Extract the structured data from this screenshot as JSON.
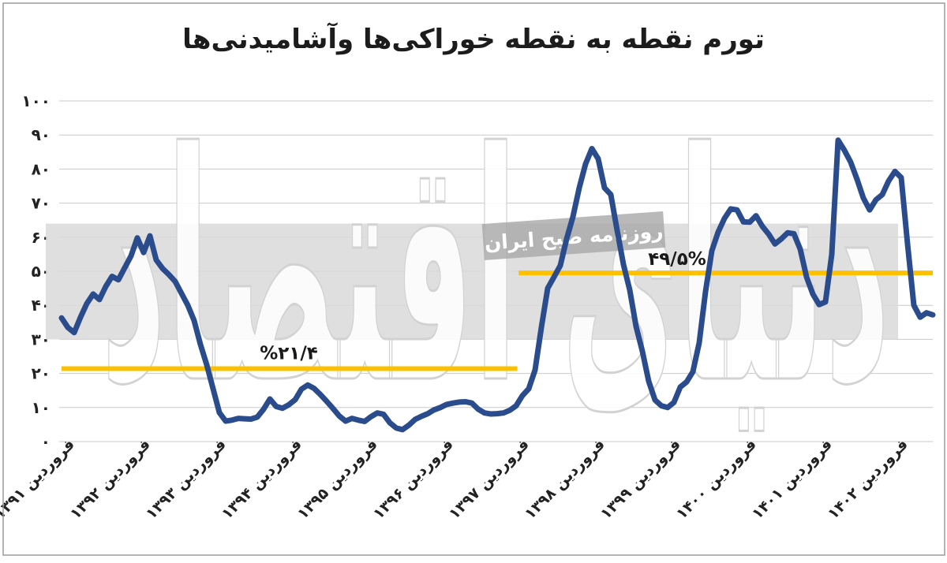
{
  "title": "تورم نقطه به نقطه خوراکی‌ها وآشامیدنی‌ها",
  "colors": {
    "line": "#2b4c8c",
    "annotation_line": "#ffc000",
    "grid": "#c9c9c9",
    "band": "#d9d9d9",
    "text": "#1c1c1c",
    "watermark_outline": "#d2d2d2",
    "watermark_box": "#a8a8a8"
  },
  "watermark": {
    "big_text": "دنیای اقتصاد",
    "box_text": "روزنامه صبح ایران"
  },
  "chart_data": {
    "type": "line",
    "title": "تورم نقطه به نقطه خوراکی‌ها وآشامیدنی‌ها",
    "unit": "درصد",
    "ylim": [
      0,
      100
    ],
    "y_tick_step": 10,
    "grid": "horizontal",
    "y_tick_labels": [
      "۰",
      "۱۰",
      "۲۰",
      "۳۰",
      "۴۰",
      "۵۰",
      "۶۰",
      "۷۰",
      "۸۰",
      "۹۰",
      "۱۰۰"
    ],
    "x_tick_labels": [
      "فروردین ۱۳۹۱",
      "فروردین ۱۳۹۲",
      "فروردین ۱۳۹۳",
      "فروردین ۱۳۹۴",
      "فروردین ۱۳۹۵",
      "فروردین ۱۳۹۶",
      "فروردین ۱۳۹۷",
      "فروردین ۱۳۹۸",
      "فروردین ۱۳۹۹",
      "فروردین ۱۴۰۰",
      "فروردین ۱۴۰۱",
      "فروردین ۱۴۰۲"
    ],
    "months_per_tick": 12,
    "series": [
      {
        "name": "تورم نقطه به نقطه خوراکی‌ها و آشامیدنی‌ها",
        "start": "فروردین ۱۳۹۱",
        "frequency": "monthly",
        "values": [
          36.3,
          33.5,
          32.0,
          36.5,
          40.5,
          43.3,
          41.7,
          45.5,
          48.5,
          47.5,
          51.0,
          54.5,
          59.8,
          55.5,
          60.4,
          53.3,
          50.8,
          49.0,
          47.0,
          43.5,
          40.0,
          35.5,
          28.5,
          22.5,
          15.5,
          8.5,
          6.0,
          6.3,
          6.8,
          6.7,
          6.6,
          7.2,
          9.5,
          12.5,
          10.3,
          9.8,
          10.8,
          12.3,
          15.4,
          16.6,
          15.6,
          13.8,
          11.8,
          9.7,
          7.5,
          6.0,
          6.8,
          6.3,
          5.9,
          7.3,
          8.4,
          8.0,
          5.5,
          4.0,
          3.5,
          4.8,
          6.5,
          7.4,
          8.2,
          9.3,
          10.0,
          10.9,
          11.3,
          11.6,
          11.7,
          11.3,
          9.5,
          8.4,
          8.1,
          8.2,
          8.4,
          9.2,
          10.5,
          13.5,
          15.5,
          21.0,
          33.5,
          45.0,
          48.3,
          51.7,
          59.5,
          66.0,
          74.5,
          81.5,
          86.0,
          83.0,
          74.5,
          72.5,
          62.0,
          52.0,
          44.5,
          33.8,
          26.5,
          17.7,
          12.2,
          10.5,
          10.0,
          11.5,
          16.0,
          17.5,
          20.5,
          29.0,
          44.0,
          56.0,
          61.5,
          65.5,
          68.3,
          68.0,
          64.5,
          64.4,
          66.3,
          63.2,
          60.9,
          58.0,
          59.5,
          61.3,
          61.0,
          56.5,
          48.3,
          43.3,
          40.2,
          41.0,
          55.0,
          88.5,
          85.5,
          82.0,
          77.0,
          71.5,
          68.0,
          71.0,
          72.5,
          76.5,
          79.3,
          77.5,
          58.0,
          40.0,
          36.5,
          37.8,
          37.2
        ]
      }
    ],
    "annotations": [
      {
        "type": "hline",
        "value": 21.4,
        "label": "%۲۱/۴",
        "from_month": 0,
        "to_month": 72.2,
        "label_month": 36,
        "label_dy": -12
      },
      {
        "type": "hline",
        "value": 49.5,
        "label": "۴۹/۵%",
        "from_month": 72.4,
        "to_month": 138,
        "label_month": 97.5,
        "label_dy": -10
      }
    ],
    "band": {
      "from_value": 30,
      "to_value": 64
    },
    "legend": "none"
  }
}
